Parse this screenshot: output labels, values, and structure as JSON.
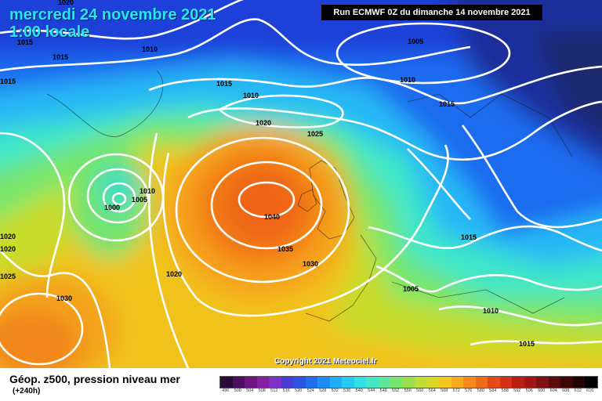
{
  "header": {
    "date_line": "mercredi 24 novembre 2021",
    "time_line": "1:00 locale",
    "run_info": "Run ECMWF 0Z du dimanche 14 novembre 2021"
  },
  "footer": {
    "parameter": "Géop. z500, pression niveau mer",
    "lead_time": "(+240h)",
    "copyright": "Copyright 2021 Meteociel.fr"
  },
  "isobar_labels": [
    {
      "text": "1020"
    },
    {
      "text": "1010"
    },
    {
      "text": "1015"
    },
    {
      "text": "1015"
    },
    {
      "text": "1005"
    },
    {
      "text": "1010"
    },
    {
      "text": "1015"
    },
    {
      "text": "1010"
    },
    {
      "text": "1015"
    },
    {
      "text": "1020"
    },
    {
      "text": "1025"
    },
    {
      "text": "1015"
    },
    {
      "text": "1010"
    },
    {
      "text": "1000"
    },
    {
      "text": "1005"
    },
    {
      "text": "1040"
    },
    {
      "text": "1020"
    },
    {
      "text": "1020"
    },
    {
      "text": "1035"
    },
    {
      "text": "1030"
    },
    {
      "text": "1025"
    },
    {
      "text": "1020"
    },
    {
      "text": "1030"
    },
    {
      "text": "1015"
    },
    {
      "text": "1005"
    },
    {
      "text": "1010"
    },
    {
      "text": "1015"
    }
  ],
  "color_scale": {
    "labels": [
      "496",
      "500",
      "504",
      "508",
      "512",
      "516",
      "520",
      "524",
      "528",
      "532",
      "536",
      "540",
      "544",
      "548",
      "552",
      "556",
      "560",
      "564",
      "568",
      "572",
      "576",
      "580",
      "584",
      "588",
      "592",
      "596",
      "600",
      "604",
      "608",
      "612",
      "616"
    ],
    "colors": [
      "#2a0a3a",
      "#4b0d5e",
      "#6d1682",
      "#8a1fa3",
      "#7c32c8",
      "#4a3bd6",
      "#2d53e6",
      "#1d6ff0",
      "#1a8ef5",
      "#20aef8",
      "#27c9f5",
      "#33dfe6",
      "#45e8c6",
      "#5fe89b",
      "#79e66c",
      "#9be04a",
      "#bedc32",
      "#dcd624",
      "#f1c51e",
      "#f8a91c",
      "#f58a1a",
      "#ef6b18",
      "#e44b16",
      "#d43014",
      "#bd1e12",
      "#a11512",
      "#7f0f10",
      "#5e0b0d",
      "#3d0708",
      "#220404",
      "#000000"
    ]
  },
  "colors": {
    "title_cyan": "#27e6f5",
    "isobar": "#ffffff",
    "high_core": "#f06a14"
  }
}
